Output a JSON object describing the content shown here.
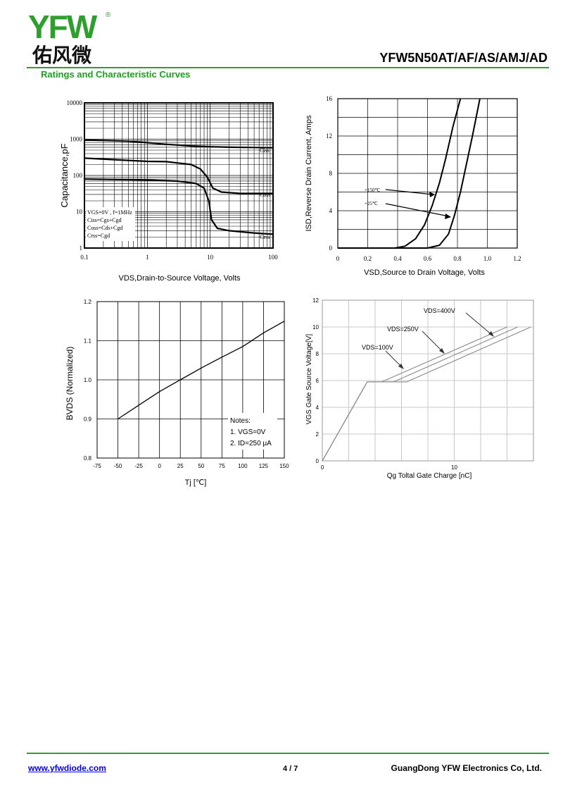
{
  "header": {
    "logo_text": "YFW",
    "logo_chinese": "佑风微",
    "registered_mark": "®",
    "part_number": "YFW5N50AT/AF/AS/AMJ/AD",
    "section_title": "Ratings and Characteristic Curves",
    "colors": {
      "brand_green": "#2e9e2e",
      "brand_yellow": "#e8b400",
      "rule": "#2e9e2e"
    }
  },
  "chart_data": [
    {
      "type": "line",
      "scale": "log-log",
      "xlabel": "VDS,Drain-to-Source Voltage, Volts",
      "ylabel": "Capacitance,pF",
      "xticks": [
        "0.1",
        "1",
        "10",
        "100"
      ],
      "yticks": [
        "1",
        "10",
        "100",
        "1000",
        "10000"
      ],
      "xlim": [
        0.1,
        100
      ],
      "ylim": [
        1,
        10000
      ],
      "series": [
        {
          "name": "Ciss",
          "x": [
            0.1,
            0.5,
            1,
            2,
            5,
            10,
            20,
            50,
            100
          ],
          "y": [
            950,
            880,
            800,
            720,
            650,
            620,
            600,
            590,
            580
          ]
        },
        {
          "name": "Coss",
          "x": [
            0.1,
            0.5,
            1,
            2,
            5,
            7,
            9,
            11,
            15,
            30,
            100
          ],
          "y": [
            300,
            260,
            245,
            240,
            200,
            150,
            90,
            45,
            35,
            32,
            32
          ]
        },
        {
          "name": "Crss",
          "x": [
            0.1,
            1,
            3,
            6,
            8,
            9.5,
            10.5,
            13,
            20,
            50,
            100
          ],
          "y": [
            80,
            75,
            70,
            60,
            45,
            20,
            6,
            3.5,
            3,
            2.6,
            2.4
          ]
        }
      ],
      "notes": [
        "VGS=0V , f=1MHz",
        "Ciss=Cgs+Cgd",
        "Coss=Cds+Cgd",
        "Crss=Cgd"
      ]
    },
    {
      "type": "line",
      "xlabel": "VSD,Source to Drain Voltage, Volts",
      "ylabel": "ISD,Reverse Drain Current, Amps",
      "xticks": [
        "0",
        "0.2",
        "0.4",
        "0.6",
        "0.8",
        "1.0",
        "1.2"
      ],
      "yticks": [
        "0",
        "4",
        "8",
        "12",
        "16"
      ],
      "xlim": [
        0,
        1.2
      ],
      "ylim": [
        0,
        16
      ],
      "series": [
        {
          "name": "+150℃",
          "x": [
            0,
            0.38,
            0.45,
            0.52,
            0.58,
            0.63,
            0.68,
            0.72,
            0.77,
            0.82
          ],
          "y": [
            0,
            0,
            0.2,
            1,
            2.5,
            4.5,
            7,
            9.5,
            13,
            16
          ]
        },
        {
          "name": "+25℃",
          "x": [
            0,
            0.6,
            0.68,
            0.74,
            0.78,
            0.82,
            0.86,
            0.9,
            0.95
          ],
          "y": [
            0,
            0,
            0.3,
            1.5,
            3.5,
            6,
            9,
            12,
            16
          ]
        }
      ]
    },
    {
      "type": "line",
      "xlabel": "Tj [℃]",
      "ylabel": "BVDS (Normalized)",
      "xticks": [
        "-75",
        "-50",
        "-25",
        "0",
        "25",
        "50",
        "75",
        "100",
        "125",
        "150"
      ],
      "yticks": [
        "0.8",
        "0.9",
        "1.0",
        "1.1",
        "1.2"
      ],
      "xlim": [
        -75,
        150
      ],
      "ylim": [
        0.8,
        1.2
      ],
      "series": [
        {
          "name": "",
          "x": [
            -50,
            -25,
            0,
            25,
            50,
            75,
            100,
            125,
            150
          ],
          "y": [
            0.9,
            0.935,
            0.97,
            1.0,
            1.03,
            1.058,
            1.085,
            1.12,
            1.15
          ]
        }
      ],
      "notes": [
        "Notes:",
        "1. VGS=0V",
        "2. ID=250 μA"
      ]
    },
    {
      "type": "line",
      "xlabel": "Qg Toltal Gate Charge [nC]",
      "ylabel": "VGS Gate Source Voltage[V]",
      "xticks": [
        "0",
        "10"
      ],
      "yticks": [
        "0",
        "2",
        "4",
        "6",
        "8",
        "10",
        "12"
      ],
      "xlim": [
        0,
        16
      ],
      "ylim": [
        0,
        12
      ],
      "series": [
        {
          "name": "VDS=100V",
          "x": [
            0,
            3.4,
            4.5,
            14
          ],
          "y": [
            0,
            5.9,
            5.9,
            10
          ]
        },
        {
          "name": "VDS=250V",
          "x": [
            0,
            3.4,
            5.4,
            14.8
          ],
          "y": [
            0,
            5.9,
            5.9,
            10
          ]
        },
        {
          "name": "VDS=400V",
          "x": [
            0,
            3.4,
            6.4,
            15.8
          ],
          "y": [
            0,
            5.9,
            5.9,
            10
          ]
        }
      ]
    }
  ],
  "footer": {
    "url": "www.yfwdiode.com",
    "page": "4 / 7",
    "company": "GuangDong YFW Electronics Co, Ltd."
  }
}
